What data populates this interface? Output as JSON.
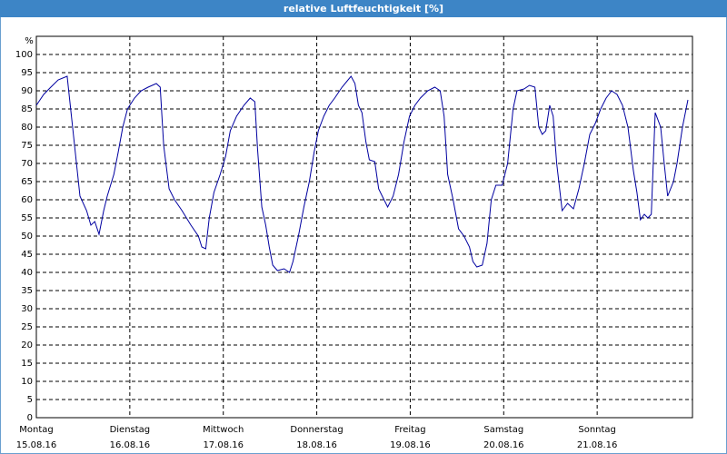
{
  "chart_data": {
    "type": "line",
    "title": "relative Luftfeuchtigkeit [%]",
    "y_label": "%",
    "x": [
      0,
      1.9,
      3.7,
      5.6,
      7.9,
      9.3,
      11.2,
      12.9,
      14,
      15,
      16.1,
      17.3,
      18.2,
      19.9,
      21,
      22.2,
      23.4,
      25.2,
      26.9,
      28.7,
      30.8,
      31.8,
      32.7,
      34.1,
      35.5,
      37.4,
      39.7,
      41.6,
      42.5,
      43.5,
      44.4,
      45.6,
      47.2,
      48.6,
      49.8,
      51.4,
      53.3,
      54.9,
      56.1,
      56.8,
      57.9,
      58.9,
      59.8,
      60.7,
      61.9,
      63.6,
      65,
      65.9,
      67.3,
      68.7,
      70.1,
      71.3,
      72.4,
      73.8,
      75.2,
      76.6,
      78.5,
      80.8,
      81.8,
      82.7,
      83.6,
      84.6,
      85.5,
      86.9,
      87.9,
      88.8,
      90.2,
      91.6,
      93,
      94.4,
      95.8,
      97.2,
      98.6,
      100.5,
      102.3,
      103.7,
      104.7,
      105.6,
      107,
      108.4,
      109.8,
      111.2,
      112.1,
      113.1,
      114.5,
      115.7,
      116.8,
      118,
      119.6,
      121,
      122.4,
      123.4,
      125.2,
      126.6,
      128,
      129,
      129.9,
      130.8,
      131.8,
      132.7,
      133.6,
      135,
      136.4,
      137.9,
      139.3,
      140.7,
      142.1,
      143.5,
      144.9,
      146.3,
      147.7,
      149.1,
      150.5,
      151.9,
      153.3,
      154.2,
      155.1,
      156.1,
      157,
      157.9,
      158.9,
      160.3,
      161.2,
      162.1,
      163.6,
      164.5,
      165.9,
      167.3
    ],
    "series": [
      {
        "name": "relative Luftfeuchtigkeit",
        "color": "#0000a0",
        "values": [
          86,
          89,
          91,
          93,
          94,
          80,
          61,
          57,
          53,
          54,
          50.5,
          57,
          61,
          67,
          73,
          80,
          85,
          88,
          90,
          91,
          92,
          91,
          75,
          63,
          60,
          57,
          53,
          50,
          47,
          46.5,
          55,
          62,
          67,
          72,
          79,
          83,
          86,
          88,
          87,
          74,
          58,
          53,
          47,
          42,
          40.5,
          41,
          40,
          43,
          50,
          58,
          65,
          73,
          79,
          83,
          86,
          88,
          91,
          94,
          92,
          86,
          84,
          76,
          71,
          70.5,
          63,
          61,
          58,
          61,
          67,
          76,
          83,
          86,
          88,
          90,
          91,
          90,
          83,
          67,
          60,
          52,
          50,
          47,
          43,
          41.5,
          42,
          48,
          60,
          64,
          64,
          70,
          85,
          90,
          90.5,
          91.5,
          91,
          80,
          78,
          79,
          86,
          83,
          70,
          57,
          59,
          57.5,
          63,
          70,
          78,
          81,
          85,
          88,
          90,
          89,
          86,
          80,
          68,
          62,
          54.5,
          56,
          55,
          56,
          84,
          80,
          70,
          61,
          65,
          70,
          80,
          87.5
        ]
      }
    ],
    "xlim": [
      0,
      168
    ],
    "xticks": [
      0,
      24,
      48,
      72,
      96,
      120,
      144
    ],
    "day_labels": [
      "Montag",
      "Dienstag",
      "Mittwoch",
      "Donnerstag",
      "Freitag",
      "Samstag",
      "Sonntag"
    ],
    "date_labels": [
      "15.08.16",
      "16.08.16",
      "17.08.16",
      "18.08.16",
      "19.08.16",
      "20.08.16",
      "21.08.16"
    ],
    "ylim": [
      0,
      105
    ],
    "yticks": [
      0,
      5,
      10,
      15,
      20,
      25,
      30,
      35,
      40,
      45,
      50,
      55,
      60,
      65,
      70,
      75,
      80,
      85,
      90,
      95,
      100
    ],
    "grid": true
  }
}
